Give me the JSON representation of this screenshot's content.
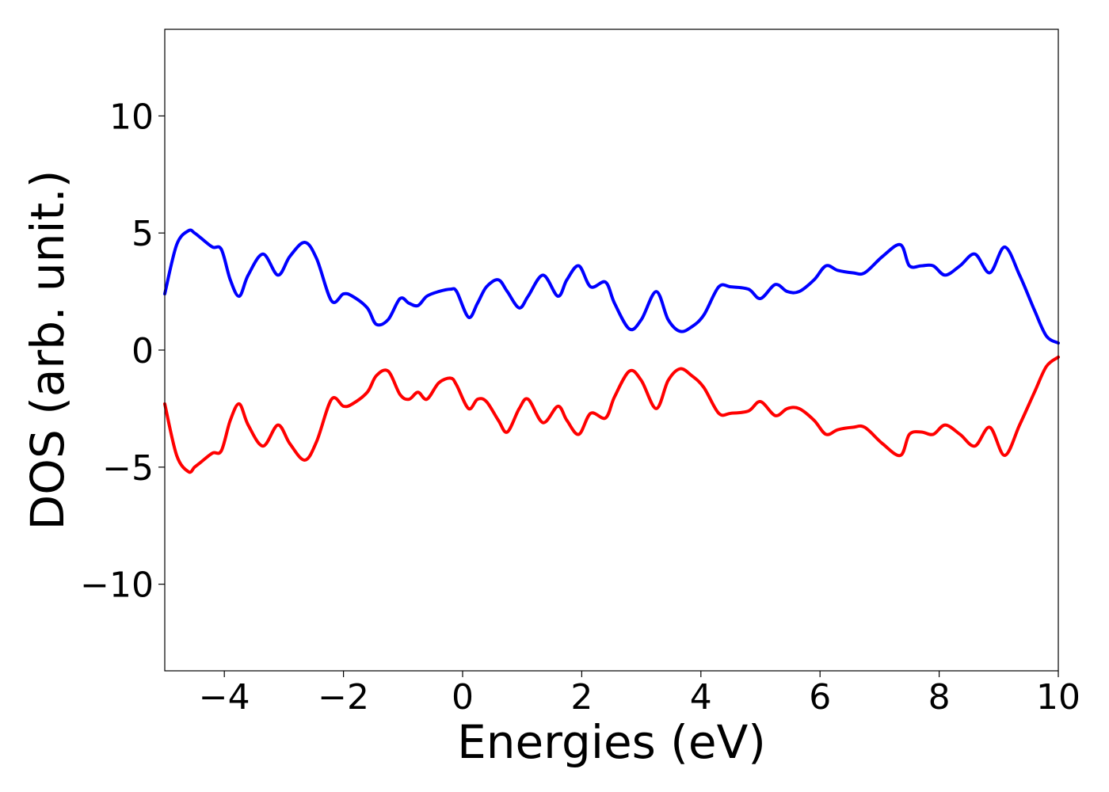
{
  "chart_data": {
    "type": "line",
    "title": "",
    "xlabel": "Energies (eV)",
    "ylabel": "DOS (arb. unit.)",
    "xlim": [
      -5,
      10
    ],
    "ylim": [
      -13.7,
      13.7
    ],
    "grid": false,
    "legend": "none",
    "x_ticks": [
      -4,
      -2,
      0,
      2,
      4,
      6,
      8,
      10
    ],
    "x_tick_labels": [
      "−4",
      "−2",
      "0",
      "2",
      "4",
      "6",
      "8",
      "10"
    ],
    "y_ticks": [
      -10,
      -5,
      0,
      5,
      10
    ],
    "y_tick_labels": [
      "−10",
      "−5",
      "0",
      "5",
      "10"
    ],
    "series": [
      {
        "color": "#0000ff",
        "x": [
          -5.0,
          -4.8,
          -4.6,
          -4.5,
          -4.4,
          -4.2,
          -4.05,
          -3.9,
          -3.75,
          -3.6,
          -3.35,
          -3.1,
          -2.9,
          -2.65,
          -2.45,
          -2.2,
          -2.0,
          -1.85,
          -1.6,
          -1.45,
          -1.25,
          -1.05,
          -0.9,
          -0.75,
          -0.6,
          -0.4,
          -0.2,
          -0.1,
          0.1,
          0.25,
          0.4,
          0.6,
          0.75,
          0.95,
          1.1,
          1.35,
          1.6,
          1.75,
          1.95,
          2.15,
          2.4,
          2.55,
          2.8,
          3.0,
          3.25,
          3.45,
          3.65,
          3.85,
          4.05,
          4.3,
          4.5,
          4.8,
          5.0,
          5.25,
          5.45,
          5.65,
          5.9,
          6.1,
          6.3,
          6.55,
          6.75,
          7.05,
          7.35,
          7.5,
          7.7,
          7.9,
          8.1,
          8.35,
          8.6,
          8.85,
          9.1,
          9.35,
          9.6,
          9.8,
          10.0
        ],
        "y": [
          2.4,
          4.5,
          5.1,
          5.0,
          4.8,
          4.4,
          4.3,
          3.0,
          2.3,
          3.2,
          4.1,
          3.2,
          4.0,
          4.6,
          3.9,
          2.1,
          2.4,
          2.3,
          1.8,
          1.1,
          1.3,
          2.2,
          2.0,
          1.9,
          2.3,
          2.5,
          2.6,
          2.5,
          1.4,
          2.0,
          2.7,
          3.0,
          2.5,
          1.8,
          2.3,
          3.2,
          2.3,
          3.0,
          3.6,
          2.7,
          2.9,
          2.0,
          0.9,
          1.3,
          2.5,
          1.3,
          0.8,
          1.0,
          1.5,
          2.7,
          2.7,
          2.6,
          2.2,
          2.8,
          2.5,
          2.5,
          3.0,
          3.6,
          3.4,
          3.3,
          3.3,
          4.0,
          4.5,
          3.6,
          3.6,
          3.6,
          3.2,
          3.6,
          4.1,
          3.3,
          4.4,
          3.2,
          1.7,
          0.6,
          0.3
        ]
      },
      {
        "color": "#ff0000",
        "x": [
          -5.0,
          -4.8,
          -4.6,
          -4.5,
          -4.4,
          -4.2,
          -4.05,
          -3.9,
          -3.75,
          -3.6,
          -3.35,
          -3.1,
          -2.9,
          -2.65,
          -2.45,
          -2.2,
          -2.0,
          -1.85,
          -1.6,
          -1.45,
          -1.25,
          -1.05,
          -0.9,
          -0.75,
          -0.6,
          -0.4,
          -0.2,
          -0.1,
          0.1,
          0.25,
          0.4,
          0.6,
          0.75,
          0.95,
          1.1,
          1.35,
          1.6,
          1.75,
          1.95,
          2.15,
          2.4,
          2.55,
          2.8,
          3.0,
          3.25,
          3.45,
          3.65,
          3.85,
          4.05,
          4.3,
          4.5,
          4.8,
          5.0,
          5.25,
          5.45,
          5.65,
          5.9,
          6.1,
          6.3,
          6.55,
          6.75,
          7.05,
          7.35,
          7.5,
          7.7,
          7.9,
          8.1,
          8.35,
          8.6,
          8.85,
          9.1,
          9.35,
          9.6,
          9.8,
          10.0
        ],
        "y": [
          -2.3,
          -4.5,
          -5.2,
          -5.0,
          -4.8,
          -4.4,
          -4.3,
          -3.0,
          -2.3,
          -3.2,
          -4.1,
          -3.2,
          -4.0,
          -4.7,
          -3.9,
          -2.1,
          -2.4,
          -2.3,
          -1.8,
          -1.1,
          -0.9,
          -1.9,
          -2.1,
          -1.8,
          -2.1,
          -1.4,
          -1.2,
          -1.5,
          -2.5,
          -2.1,
          -2.2,
          -3.0,
          -3.5,
          -2.5,
          -2.1,
          -3.1,
          -2.4,
          -3.0,
          -3.6,
          -2.7,
          -2.9,
          -2.0,
          -0.9,
          -1.3,
          -2.5,
          -1.3,
          -0.8,
          -1.1,
          -1.6,
          -2.7,
          -2.7,
          -2.6,
          -2.2,
          -2.8,
          -2.5,
          -2.5,
          -3.0,
          -3.6,
          -3.4,
          -3.3,
          -3.3,
          -4.0,
          -4.5,
          -3.6,
          -3.5,
          -3.6,
          -3.2,
          -3.6,
          -4.1,
          -3.3,
          -4.5,
          -3.2,
          -1.8,
          -0.7,
          -0.3
        ]
      }
    ]
  }
}
